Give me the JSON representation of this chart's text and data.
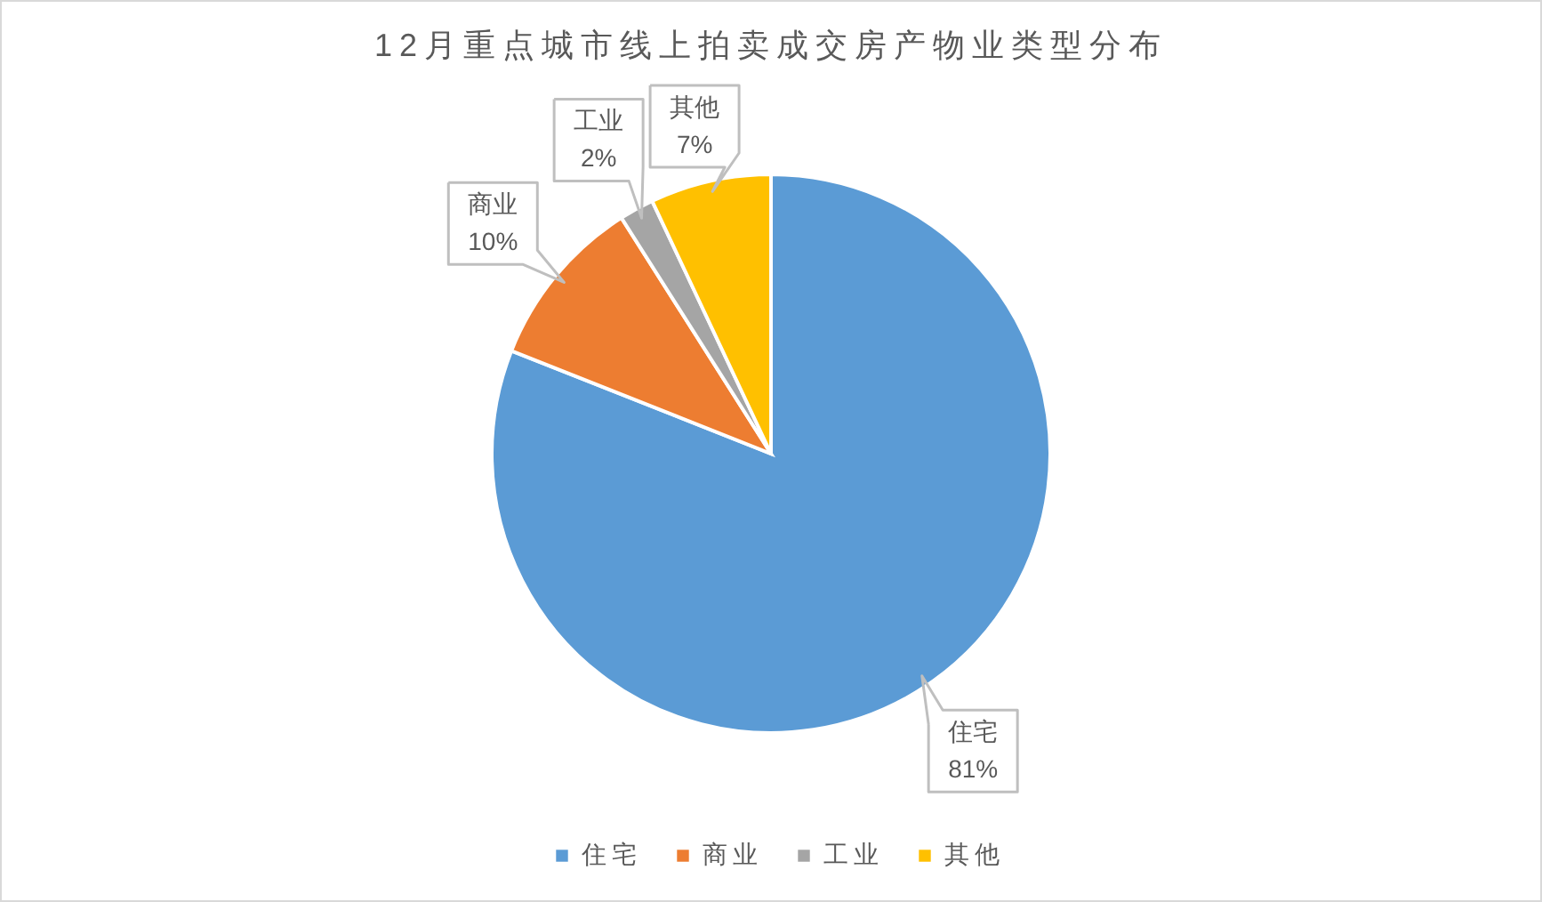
{
  "chart_data": {
    "type": "pie",
    "title": "12月重点城市线上拍卖成交房产物业类型分布",
    "categories": [
      "住宅",
      "商业",
      "工业",
      "其他"
    ],
    "values": [
      81,
      10,
      2,
      7
    ],
    "colors": [
      "#5b9bd5",
      "#ed7d31",
      "#a5a5a5",
      "#ffc000"
    ],
    "value_labels": [
      "81%",
      "10%",
      "2%",
      "7%"
    ],
    "legend": "bottom"
  }
}
